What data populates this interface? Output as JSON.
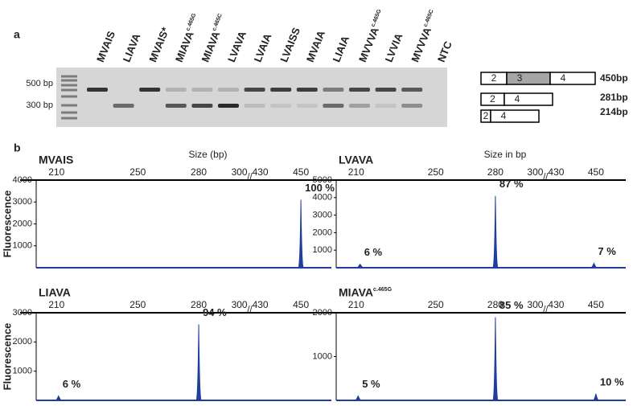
{
  "panel_a": {
    "label": "a",
    "lanes": [
      {
        "text": "MVAIS"
      },
      {
        "text": "LIAVA"
      },
      {
        "text": "MVAIS*"
      },
      {
        "text": "MIAVA",
        "superscript": "c.465G"
      },
      {
        "text": "MIAVA",
        "superscript": "c.465C"
      },
      {
        "text": "LVAVA"
      },
      {
        "text": "LVAIA"
      },
      {
        "text": "LVAISS"
      },
      {
        "text": "MVAIA"
      },
      {
        "text": "LIAIA"
      },
      {
        "text": "MVVVA",
        "superscript": "c.465G"
      },
      {
        "text": "LVVIA"
      },
      {
        "text": "MVVVA",
        "superscript": "c.465C"
      },
      {
        "text": "NTC"
      }
    ],
    "ladder_labels": [
      "500 bp",
      "300 bp"
    ],
    "diagram": [
      {
        "exons": [
          "2",
          "3",
          "4"
        ],
        "size": "450bp"
      },
      {
        "exons": [
          "2",
          "4"
        ],
        "size": "281bp"
      },
      {
        "exons": [
          "2",
          "4"
        ],
        "size": "214bp"
      }
    ]
  },
  "panel_b_label": "b",
  "chart_data": [
    {
      "type": "peaks",
      "title": "MVAIS",
      "x_label": "Size (bp)",
      "y_label": "Fluorescence",
      "xlim": [
        200,
        465
      ],
      "xbreak": [
        300,
        430
      ],
      "xticks": [
        210,
        250,
        280,
        300,
        430,
        450
      ],
      "ylim": [
        0,
        4000
      ],
      "yticks": [
        1000,
        2000,
        3000,
        4000
      ],
      "x": [
        450
      ],
      "values": [
        3100
      ],
      "annotations": [
        "100 %"
      ],
      "color": "#1f3f9a"
    },
    {
      "type": "peaks",
      "title": "LVAVA",
      "x_label": "Size in bp",
      "xlim": [
        200,
        465
      ],
      "xbreak": [
        300,
        430
      ],
      "xticks": [
        210,
        250,
        280,
        300,
        430,
        450
      ],
      "ylim": [
        0,
        5000
      ],
      "yticks": [
        1000,
        2000,
        3000,
        4000,
        5000
      ],
      "x": [
        212,
        280,
        449
      ],
      "values": [
        200,
        4100,
        250
      ],
      "annotations": [
        "6 %",
        "87 %",
        "7 %"
      ],
      "color": "#1f3f9a"
    },
    {
      "type": "peaks",
      "title": "LIAVA",
      "y_label": "Fluorescence",
      "xlim": [
        200,
        465
      ],
      "xbreak": [
        300,
        430
      ],
      "xticks": [
        210,
        250,
        280,
        300,
        430,
        450
      ],
      "ylim": [
        0,
        3000
      ],
      "yticks": [
        1000,
        2000,
        3000
      ],
      "x": [
        211,
        280
      ],
      "values": [
        150,
        2600
      ],
      "annotations": [
        "6 %",
        "94 %"
      ],
      "color": "#1f3f9a"
    },
    {
      "type": "peaks",
      "title": "MIAVA",
      "title_superscript": "c.465G",
      "xlim": [
        200,
        465
      ],
      "xbreak": [
        300,
        430
      ],
      "xticks": [
        210,
        250,
        280,
        300,
        430,
        450
      ],
      "ylim": [
        0,
        2000
      ],
      "yticks": [
        1000,
        2000
      ],
      "x": [
        211,
        280,
        450
      ],
      "values": [
        100,
        1900,
        150
      ],
      "annotations": [
        "5 %",
        "85 %",
        "10 %"
      ],
      "color": "#1f3f9a"
    }
  ]
}
